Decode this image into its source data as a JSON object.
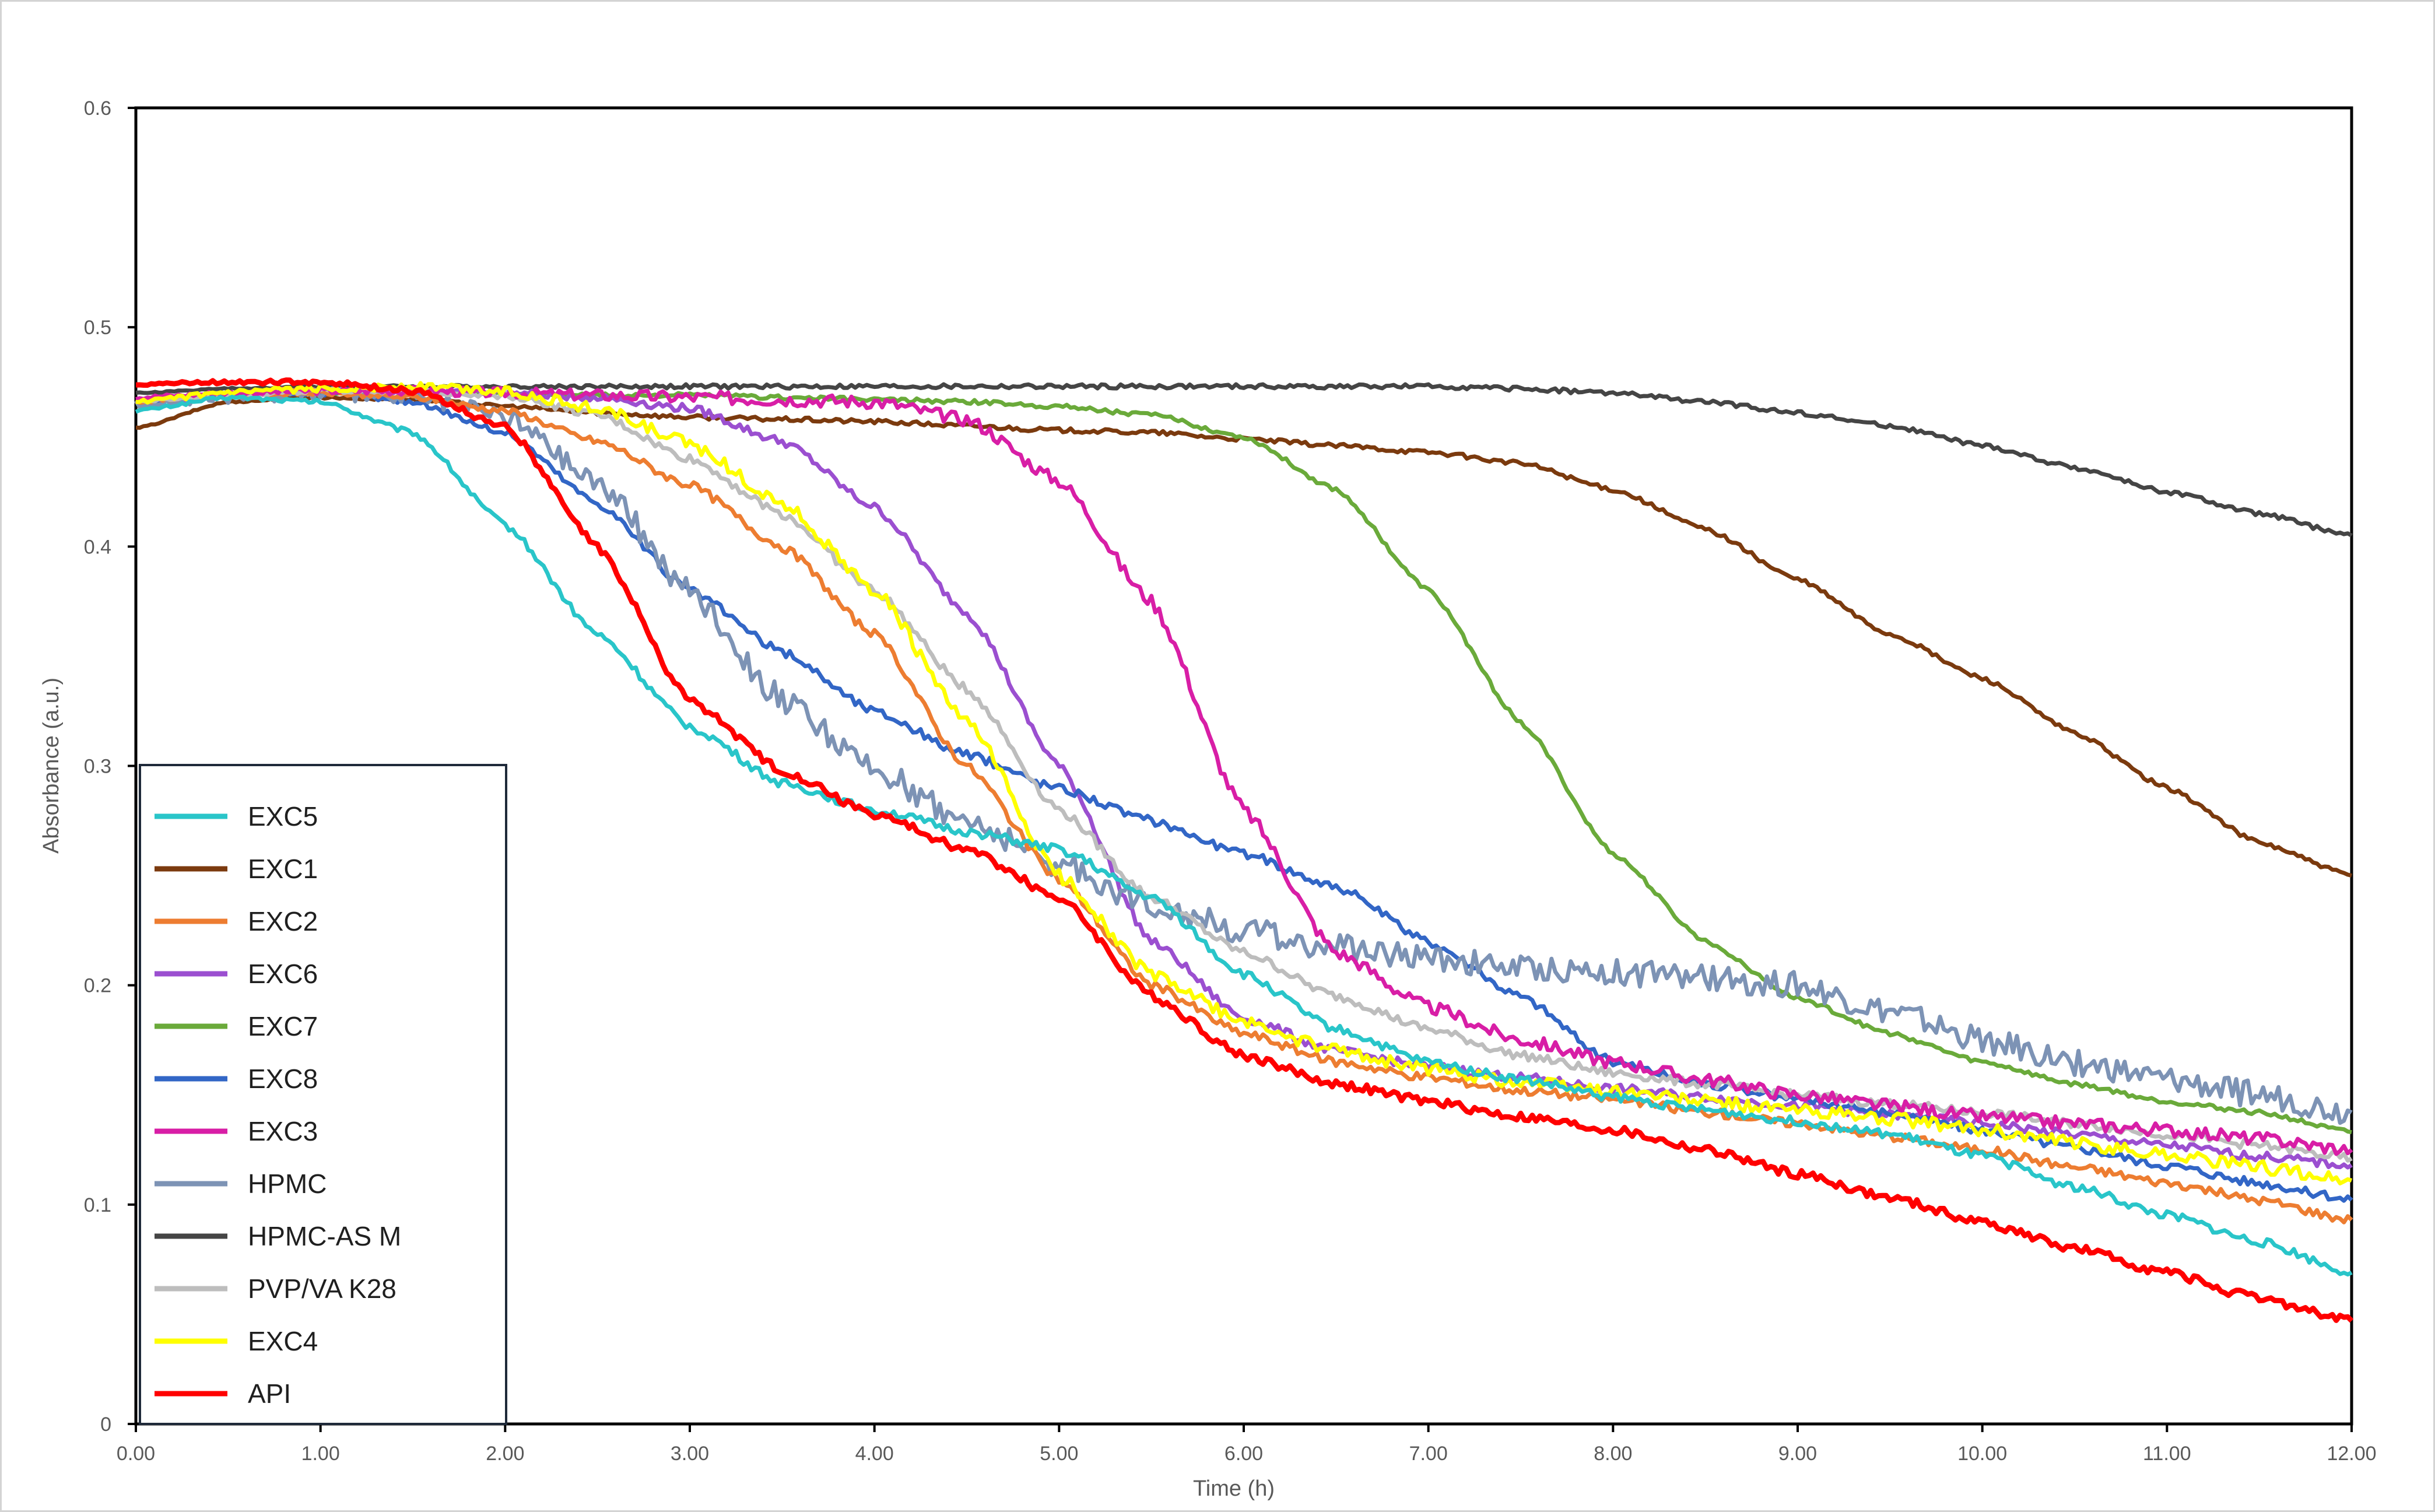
{
  "chart_data": {
    "type": "line",
    "xlabel": "Time (h)",
    "ylabel": "Absorbance (a.u.)",
    "xlim": [
      0,
      12
    ],
    "ylim": [
      0,
      0.6
    ],
    "x_ticks": [
      "0.00",
      "1.00",
      "2.00",
      "3.00",
      "4.00",
      "5.00",
      "6.00",
      "7.00",
      "8.00",
      "9.00",
      "10.00",
      "11.00",
      "12.00"
    ],
    "y_ticks": [
      "0",
      "0.1",
      "0.2",
      "0.3",
      "0.4",
      "0.5",
      "0.6"
    ],
    "grid": false,
    "legend_position": "bottom-left",
    "x": [
      0,
      0.5,
      1,
      1.5,
      2,
      2.5,
      3,
      3.5,
      4,
      4.5,
      5,
      5.5,
      6,
      6.5,
      7,
      7.5,
      8,
      8.5,
      9,
      9.5,
      10,
      10.5,
      11,
      11.5,
      12
    ],
    "series": [
      {
        "name": "EXC5",
        "color": "#29c5c9",
        "noise": 0.002,
        "values": [
          0.462,
          0.468,
          0.466,
          0.452,
          0.41,
          0.36,
          0.318,
          0.292,
          0.28,
          0.27,
          0.262,
          0.24,
          0.205,
          0.18,
          0.165,
          0.157,
          0.149,
          0.143,
          0.138,
          0.132,
          0.122,
          0.108,
          0.095,
          0.083,
          0.069
        ]
      },
      {
        "name": "EXC1",
        "color": "#7b3a0e",
        "noise": 0.001,
        "values": [
          0.454,
          0.466,
          0.468,
          0.467,
          0.464,
          0.461,
          0.459,
          0.458,
          0.457,
          0.455,
          0.453,
          0.452,
          0.449,
          0.446,
          0.443,
          0.438,
          0.426,
          0.408,
          0.385,
          0.36,
          0.34,
          0.315,
          0.29,
          0.265,
          0.25
        ]
      },
      {
        "name": "EXC2",
        "color": "#ed7d31",
        "noise": 0.002,
        "values": [
          0.466,
          0.469,
          0.47,
          0.468,
          0.462,
          0.448,
          0.428,
          0.4,
          0.36,
          0.3,
          0.248,
          0.2,
          0.178,
          0.165,
          0.158,
          0.152,
          0.148,
          0.142,
          0.137,
          0.131,
          0.125,
          0.117,
          0.11,
          0.102,
          0.093
        ]
      },
      {
        "name": "EXC6",
        "color": "#9b4fd0",
        "noise": 0.002,
        "values": [
          0.465,
          0.469,
          0.471,
          0.471,
          0.47,
          0.468,
          0.463,
          0.448,
          0.418,
          0.37,
          0.3,
          0.22,
          0.185,
          0.17,
          0.163,
          0.158,
          0.153,
          0.149,
          0.145,
          0.141,
          0.137,
          0.132,
          0.127,
          0.122,
          0.118
        ]
      },
      {
        "name": "EXC7",
        "color": "#6aaa3a",
        "noise": 0.001,
        "values": [
          0.466,
          0.469,
          0.47,
          0.47,
          0.47,
          0.469,
          0.469,
          0.468,
          0.467,
          0.466,
          0.464,
          0.46,
          0.45,
          0.426,
          0.38,
          0.32,
          0.26,
          0.22,
          0.194,
          0.178,
          0.165,
          0.155,
          0.147,
          0.142,
          0.133
        ]
      },
      {
        "name": "EXC8",
        "color": "#3266c6",
        "noise": 0.002,
        "values": [
          0.466,
          0.469,
          0.47,
          0.466,
          0.452,
          0.42,
          0.38,
          0.352,
          0.325,
          0.305,
          0.29,
          0.275,
          0.26,
          0.245,
          0.22,
          0.195,
          0.165,
          0.155,
          0.148,
          0.142,
          0.134,
          0.126,
          0.118,
          0.11,
          0.102
        ]
      },
      {
        "name": "EXC3",
        "color": "#d81ea6",
        "noise": 0.003,
        "values": [
          0.468,
          0.47,
          0.471,
          0.471,
          0.47,
          0.469,
          0.468,
          0.467,
          0.466,
          0.458,
          0.43,
          0.375,
          0.28,
          0.215,
          0.19,
          0.175,
          0.165,
          0.157,
          0.15,
          0.145,
          0.14,
          0.137,
          0.134,
          0.13,
          0.125
        ]
      },
      {
        "name": "HPMC",
        "color": "#7d93b5",
        "noise": 0.006,
        "values": [
          0.465,
          0.468,
          0.47,
          0.468,
          0.46,
          0.43,
          0.38,
          0.33,
          0.298,
          0.275,
          0.255,
          0.237,
          0.225,
          0.217,
          0.213,
          0.208,
          0.206,
          0.203,
          0.2,
          0.188,
          0.175,
          0.165,
          0.157,
          0.15,
          0.142
        ]
      },
      {
        "name": "HPMC-AS M",
        "color": "#454545",
        "noise": 0.001,
        "values": [
          0.47,
          0.472,
          0.473,
          0.473,
          0.473,
          0.473,
          0.473,
          0.473,
          0.473,
          0.473,
          0.473,
          0.473,
          0.473,
          0.473,
          0.473,
          0.472,
          0.47,
          0.466,
          0.461,
          0.455,
          0.446,
          0.436,
          0.425,
          0.415,
          0.405
        ]
      },
      {
        "name": "PVP/VA K28",
        "color": "#bdbdbd",
        "noise": 0.002,
        "values": [
          0.466,
          0.469,
          0.471,
          0.471,
          0.469,
          0.46,
          0.44,
          0.415,
          0.38,
          0.335,
          0.28,
          0.24,
          0.215,
          0.195,
          0.18,
          0.168,
          0.16,
          0.155,
          0.15,
          0.146,
          0.142,
          0.137,
          0.132,
          0.127,
          0.121
        ]
      },
      {
        "name": "EXC4",
        "color": "#ffff00",
        "noise": 0.003,
        "values": [
          0.466,
          0.47,
          0.472,
          0.473,
          0.471,
          0.463,
          0.447,
          0.42,
          0.38,
          0.32,
          0.25,
          0.205,
          0.183,
          0.17,
          0.162,
          0.156,
          0.152,
          0.147,
          0.143,
          0.139,
          0.134,
          0.128,
          0.123,
          0.117,
          0.111
        ]
      },
      {
        "name": "API",
        "color": "#ff0000",
        "noise": 0.002,
        "values": [
          0.474,
          0.475,
          0.475,
          0.471,
          0.455,
          0.4,
          0.33,
          0.298,
          0.278,
          0.262,
          0.24,
          0.195,
          0.168,
          0.155,
          0.147,
          0.14,
          0.134,
          0.125,
          0.114,
          0.103,
          0.092,
          0.08,
          0.069,
          0.057,
          0.047
        ]
      }
    ]
  }
}
